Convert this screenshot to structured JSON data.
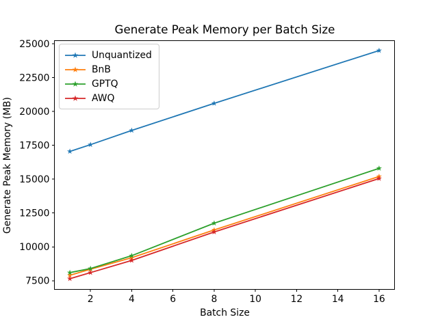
{
  "figure": {
    "background": "#ffffff",
    "axis_color": "#000000",
    "text_color": "#000000",
    "legend_border_color": "#cccccc"
  },
  "chart_data": {
    "type": "line",
    "title": "Generate Peak Memory per Batch Size",
    "xlabel": "Batch Size",
    "ylabel": "Generate Peak Memory (MB)",
    "x": [
      1,
      2,
      4,
      8,
      16
    ],
    "series": [
      {
        "name": "Unquantized",
        "color": "#1f77b4",
        "marker": "star",
        "values": [
          17050,
          17550,
          18600,
          20600,
          24500
        ]
      },
      {
        "name": "BnB",
        "color": "#ff7f0e",
        "marker": "star",
        "values": [
          7900,
          8350,
          9200,
          11250,
          15200
        ]
      },
      {
        "name": "GPTQ",
        "color": "#2ca02c",
        "marker": "star",
        "values": [
          8100,
          8400,
          9350,
          11750,
          15800
        ]
      },
      {
        "name": "AWQ",
        "color": "#d62728",
        "marker": "star",
        "values": [
          7650,
          8100,
          9000,
          11100,
          15050
        ]
      }
    ],
    "xticks": [
      2,
      4,
      6,
      8,
      10,
      12,
      14,
      16
    ],
    "yticks": [
      7500,
      10000,
      12500,
      15000,
      17500,
      20000,
      22500,
      25000
    ],
    "xlim": [
      0.25,
      16.75
    ],
    "ylim": [
      6860,
      25230
    ],
    "grid": false,
    "legend": {
      "position": "upper-left"
    }
  }
}
